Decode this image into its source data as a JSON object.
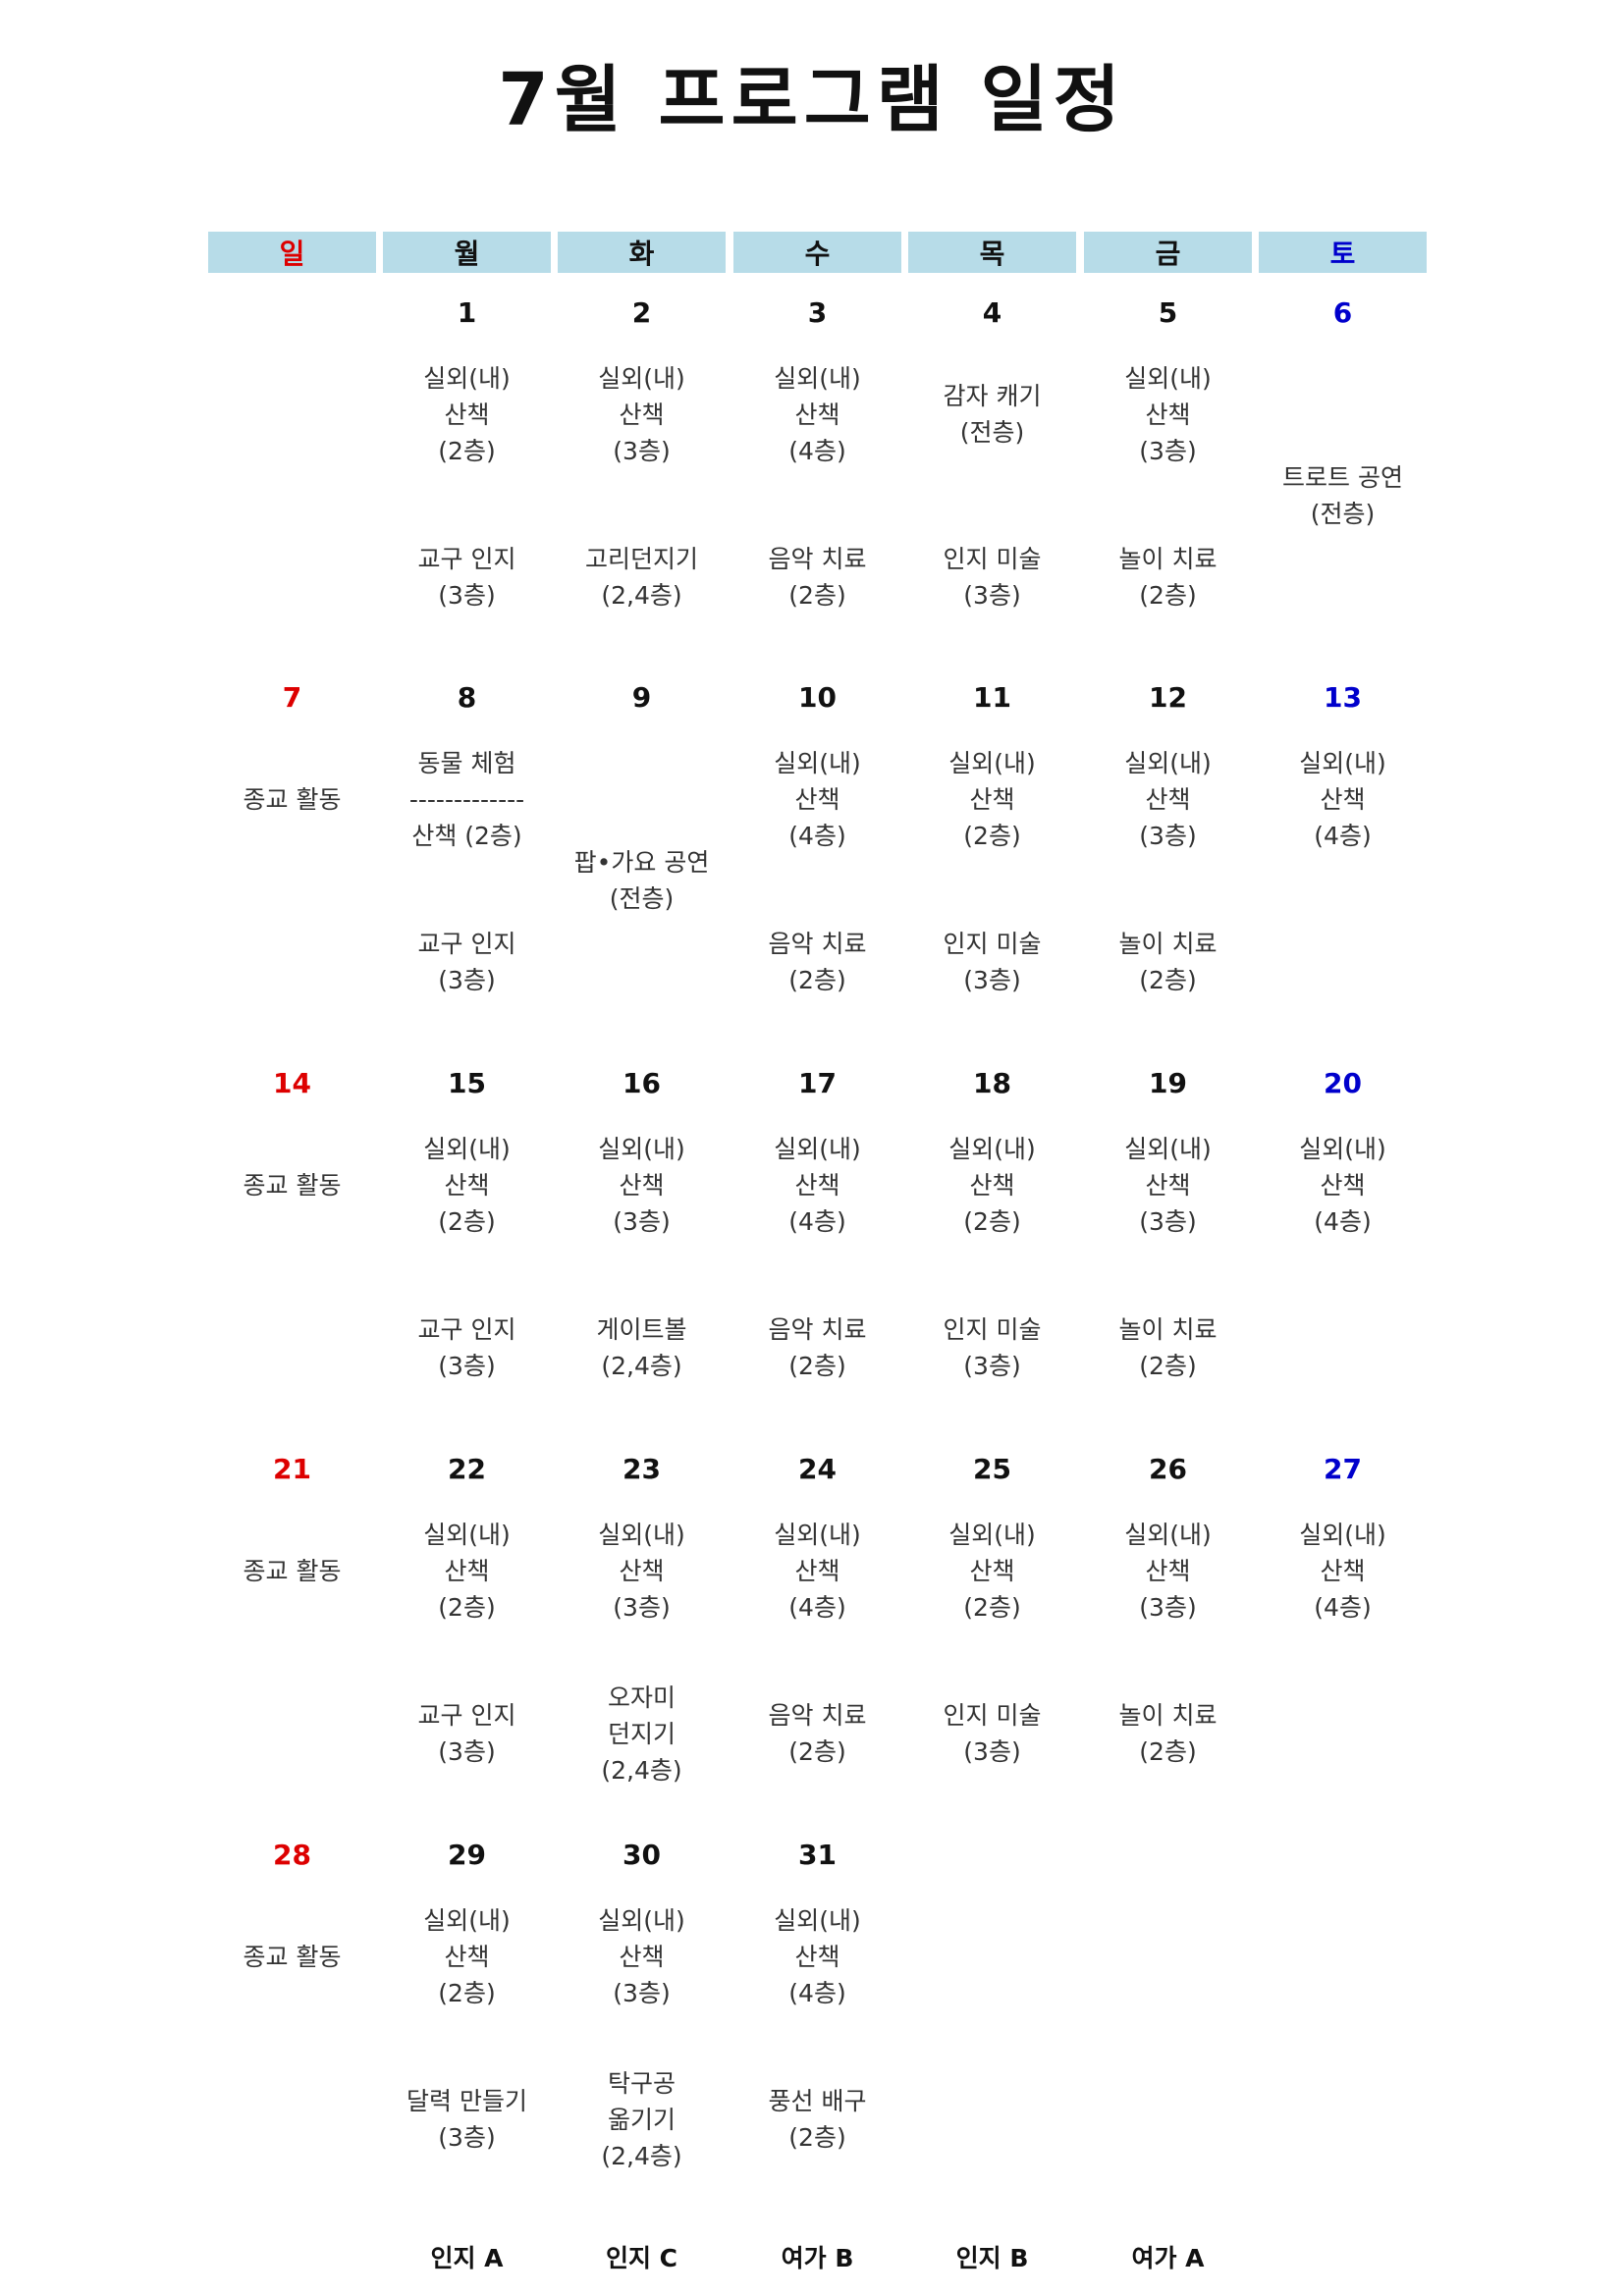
{
  "title": "7월 프로그램 일정",
  "colors": {
    "sunday": "#dd0000",
    "saturday": "#0000cc",
    "default": "#111111",
    "walk": "#f9d5b7",
    "activity": "#d9e4bf",
    "event": "#b7dce8"
  },
  "weekdays": [
    {
      "label": "일",
      "color": "#dd0000"
    },
    {
      "label": "월",
      "color": "#111111"
    },
    {
      "label": "화",
      "color": "#111111"
    },
    {
      "label": "수",
      "color": "#111111"
    },
    {
      "label": "목",
      "color": "#111111"
    },
    {
      "label": "금",
      "color": "#111111"
    },
    {
      "label": "토",
      "color": "#0000cc"
    }
  ],
  "weeks": [
    {
      "days": [
        {
          "date": ""
        },
        {
          "date": "1",
          "slots": [
            {
              "kind": "walk",
              "lines": [
                "실외(내)",
                "산책",
                "(2층)"
              ]
            },
            {
              "kind": "activity",
              "lines": [
                "교구 인지",
                "(3층)"
              ]
            }
          ]
        },
        {
          "date": "2",
          "slots": [
            {
              "kind": "walk",
              "lines": [
                "실외(내)",
                "산책",
                "(3층)"
              ]
            },
            {
              "kind": "activity",
              "lines": [
                "고리던지기",
                "(2,4층)"
              ]
            }
          ]
        },
        {
          "date": "3",
          "slots": [
            {
              "kind": "walk",
              "lines": [
                "실외(내)",
                "산책",
                "(4층)"
              ]
            },
            {
              "kind": "activity",
              "lines": [
                "음악 치료",
                "(2층)"
              ]
            }
          ]
        },
        {
          "date": "4",
          "slots": [
            {
              "kind": "event",
              "lines": [
                "감자 캐기",
                "(전층)"
              ]
            },
            {
              "kind": "activity",
              "lines": [
                "인지 미술",
                "(3층)"
              ]
            }
          ]
        },
        {
          "date": "5",
          "slots": [
            {
              "kind": "walk",
              "lines": [
                "실외(내)",
                "산책",
                "(3층)"
              ]
            },
            {
              "kind": "activity",
              "lines": [
                "놀이 치료",
                "(2층)"
              ]
            }
          ]
        },
        {
          "date": "6",
          "slots": [
            {
              "kind": "event",
              "span": 2,
              "lines": [
                "트로트 공연",
                "(전층)"
              ]
            }
          ]
        }
      ]
    },
    {
      "days": [
        {
          "date": "7",
          "slots": [
            {
              "kind": "walk",
              "lines": [
                "종교 활동"
              ]
            }
          ]
        },
        {
          "date": "8",
          "slots": [
            {
              "kind": "event",
              "lines": [
                "동물 체험",
                "-------------",
                "산책 (2층)"
              ]
            },
            {
              "kind": "activity",
              "lines": [
                "교구 인지",
                "(3층)"
              ]
            }
          ]
        },
        {
          "date": "9",
          "slots": [
            {
              "kind": "event",
              "span": 2,
              "lines": [
                "팝•가요 공연",
                "(전층)"
              ]
            }
          ]
        },
        {
          "date": "10",
          "slots": [
            {
              "kind": "walk",
              "lines": [
                "실외(내)",
                "산책",
                "(4층)"
              ]
            },
            {
              "kind": "activity",
              "lines": [
                "음악 치료",
                "(2층)"
              ]
            }
          ]
        },
        {
          "date": "11",
          "slots": [
            {
              "kind": "walk",
              "lines": [
                "실외(내)",
                "산책",
                "(2층)"
              ]
            },
            {
              "kind": "activity",
              "lines": [
                "인지 미술",
                "(3층)"
              ]
            }
          ]
        },
        {
          "date": "12",
          "slots": [
            {
              "kind": "walk",
              "lines": [
                "실외(내)",
                "산책",
                "(3층)"
              ]
            },
            {
              "kind": "activity",
              "lines": [
                "놀이 치료",
                "(2층)"
              ]
            }
          ]
        },
        {
          "date": "13",
          "slots": [
            {
              "kind": "walk",
              "lines": [
                "실외(내)",
                "산책",
                "(4층)"
              ]
            }
          ]
        }
      ]
    },
    {
      "days": [
        {
          "date": "14",
          "slots": [
            {
              "kind": "walk",
              "lines": [
                "종교 활동"
              ]
            }
          ]
        },
        {
          "date": "15",
          "slots": [
            {
              "kind": "walk",
              "lines": [
                "실외(내)",
                "산책",
                "(2층)"
              ]
            },
            {
              "kind": "activity",
              "lines": [
                "교구 인지",
                "(3층)"
              ]
            }
          ]
        },
        {
          "date": "16",
          "slots": [
            {
              "kind": "walk",
              "lines": [
                "실외(내)",
                "산책",
                "(3층)"
              ]
            },
            {
              "kind": "activity",
              "lines": [
                "게이트볼",
                "(2,4층)"
              ]
            }
          ]
        },
        {
          "date": "17",
          "slots": [
            {
              "kind": "walk",
              "lines": [
                "실외(내)",
                "산책",
                "(4층)"
              ]
            },
            {
              "kind": "activity",
              "lines": [
                "음악 치료",
                "(2층)"
              ]
            }
          ]
        },
        {
          "date": "18",
          "slots": [
            {
              "kind": "walk",
              "lines": [
                "실외(내)",
                "산책",
                "(2층)"
              ]
            },
            {
              "kind": "activity",
              "lines": [
                "인지 미술",
                "(3층)"
              ]
            }
          ]
        },
        {
          "date": "19",
          "slots": [
            {
              "kind": "walk",
              "lines": [
                "실외(내)",
                "산책",
                "(3층)"
              ]
            },
            {
              "kind": "activity",
              "lines": [
                "놀이 치료",
                "(2층)"
              ]
            }
          ]
        },
        {
          "date": "20",
          "slots": [
            {
              "kind": "walk",
              "lines": [
                "실외(내)",
                "산책",
                "(4층)"
              ]
            }
          ]
        }
      ]
    },
    {
      "days": [
        {
          "date": "21",
          "slots": [
            {
              "kind": "walk",
              "lines": [
                "종교 활동"
              ]
            }
          ]
        },
        {
          "date": "22",
          "slots": [
            {
              "kind": "walk",
              "lines": [
                "실외(내)",
                "산책",
                "(2층)"
              ]
            },
            {
              "kind": "activity",
              "lines": [
                "교구 인지",
                "(3층)"
              ]
            }
          ]
        },
        {
          "date": "23",
          "slots": [
            {
              "kind": "walk",
              "lines": [
                "실외(내)",
                "산책",
                "(3층)"
              ]
            },
            {
              "kind": "activity",
              "lines": [
                "오자미",
                "던지기",
                "(2,4층)"
              ]
            }
          ]
        },
        {
          "date": "24",
          "slots": [
            {
              "kind": "walk",
              "lines": [
                "실외(내)",
                "산책",
                "(4층)"
              ]
            },
            {
              "kind": "activity",
              "lines": [
                "음악 치료",
                "(2층)"
              ]
            }
          ]
        },
        {
          "date": "25",
          "slots": [
            {
              "kind": "walk",
              "lines": [
                "실외(내)",
                "산책",
                "(2층)"
              ]
            },
            {
              "kind": "activity",
              "lines": [
                "인지 미술",
                "(3층)"
              ]
            }
          ]
        },
        {
          "date": "26",
          "slots": [
            {
              "kind": "walk",
              "lines": [
                "실외(내)",
                "산책",
                "(3층)"
              ]
            },
            {
              "kind": "activity",
              "lines": [
                "놀이 치료",
                "(2층)"
              ]
            }
          ]
        },
        {
          "date": "27",
          "slots": [
            {
              "kind": "walk",
              "lines": [
                "실외(내)",
                "산책",
                "(4층)"
              ]
            }
          ]
        }
      ]
    },
    {
      "days": [
        {
          "date": "28",
          "slots": [
            {
              "kind": "walk",
              "lines": [
                "종교 활동"
              ]
            }
          ]
        },
        {
          "date": "29",
          "slots": [
            {
              "kind": "walk",
              "lines": [
                "실외(내)",
                "산책",
                "(2층)"
              ]
            },
            {
              "kind": "activity",
              "lines": [
                "달력 만들기",
                "(3층)"
              ]
            }
          ]
        },
        {
          "date": "30",
          "slots": [
            {
              "kind": "walk",
              "lines": [
                "실외(내)",
                "산책",
                "(3층)"
              ]
            },
            {
              "kind": "activity",
              "lines": [
                "탁구공",
                "옮기기",
                "(2,4층)"
              ]
            }
          ]
        },
        {
          "date": "31",
          "slots": [
            {
              "kind": "walk",
              "lines": [
                "실외(내)",
                "산책",
                "(4층)"
              ]
            },
            {
              "kind": "activity",
              "lines": [
                "풍선 배구",
                "(2층)"
              ]
            }
          ]
        },
        {
          "date": ""
        },
        {
          "date": ""
        },
        {
          "date": ""
        }
      ]
    }
  ],
  "footer": [
    "",
    "인지 A",
    "인지 C",
    "여가 B",
    "인지 B",
    "여가 A",
    ""
  ]
}
